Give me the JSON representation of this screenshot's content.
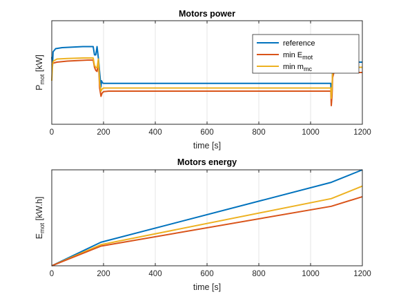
{
  "chart_data": [
    {
      "type": "line",
      "title": "Motors power",
      "xlabel": "time [s]",
      "ylabel_main": "P",
      "ylabel_sub": "mot",
      "ylabel_unit": " [kW]",
      "xlim": [
        0,
        1200
      ],
      "xticks": [
        0,
        200,
        400,
        600,
        800,
        1000,
        1200
      ],
      "ylim": [
        0,
        100
      ],
      "yticks_visible": false,
      "grid": "vertical",
      "legend_position": "top-right",
      "legend": [
        {
          "main": "reference",
          "sub": ""
        },
        {
          "main": "min E",
          "sub": "mot"
        },
        {
          "main": "min m",
          "sub": "mc"
        }
      ],
      "series": [
        {
          "color": "#0072BD",
          "x": [
            0,
            3,
            5,
            15,
            40,
            80,
            120,
            160,
            165,
            170,
            175,
            180,
            185,
            190,
            192,
            196,
            200,
            220,
            300,
            500,
            800,
            1000,
            1078,
            1080,
            1083,
            1085,
            1088,
            1095,
            1200
          ],
          "y": [
            65,
            56,
            70,
            73,
            74,
            74.5,
            75,
            75,
            67,
            67,
            75,
            64,
            50,
            36,
            42,
            40,
            39.5,
            39.5,
            39.5,
            39.5,
            39.5,
            39.5,
            39.5,
            25,
            32,
            54,
            59,
            60,
            60
          ]
        },
        {
          "color": "#D95319",
          "x": [
            0,
            5,
            20,
            60,
            100,
            140,
            160,
            165,
            170,
            175,
            180,
            185,
            190,
            194,
            200,
            220,
            400,
            800,
            1078,
            1080,
            1083,
            1085,
            1090,
            1200
          ],
          "y": [
            57,
            59,
            60,
            61,
            61.5,
            62,
            62,
            55,
            52,
            51,
            61,
            35,
            27,
            30,
            31.5,
            32,
            32,
            32,
            32,
            18,
            28,
            45,
            50,
            50
          ]
        },
        {
          "color": "#EDB120",
          "x": [
            0,
            3,
            6,
            20,
            60,
            120,
            160,
            165,
            170,
            175,
            180,
            185,
            190,
            194,
            200,
            220,
            500,
            800,
            1078,
            1080,
            1083,
            1085,
            1090,
            1200
          ],
          "y": [
            42,
            58,
            61,
            63,
            63.5,
            64,
            64,
            57,
            55,
            54.5,
            63,
            40,
            32,
            34,
            35,
            35,
            35,
            35,
            35,
            25,
            36,
            52,
            55,
            55
          ]
        }
      ]
    },
    {
      "type": "line",
      "title": "Motors energy",
      "xlabel": "time [s]",
      "ylabel_main": "E",
      "ylabel_sub": "mot",
      "ylabel_unit": " [kW.h]",
      "xlim": [
        0,
        1200
      ],
      "xticks": [
        0,
        200,
        400,
        600,
        800,
        1000,
        1200
      ],
      "ylim": [
        0,
        100
      ],
      "yticks_visible": false,
      "grid": "vertical",
      "series": [
        {
          "color": "#0072BD",
          "x": [
            0,
            190,
            1080,
            1200
          ],
          "y": [
            0,
            24.5,
            87,
            100
          ]
        },
        {
          "color": "#EDB120",
          "x": [
            0,
            190,
            1080,
            1200
          ],
          "y": [
            0,
            22,
            70,
            83
          ]
        },
        {
          "color": "#D95319",
          "x": [
            0,
            190,
            1080,
            1200
          ],
          "y": [
            0,
            20.5,
            62,
            72
          ]
        }
      ]
    }
  ]
}
